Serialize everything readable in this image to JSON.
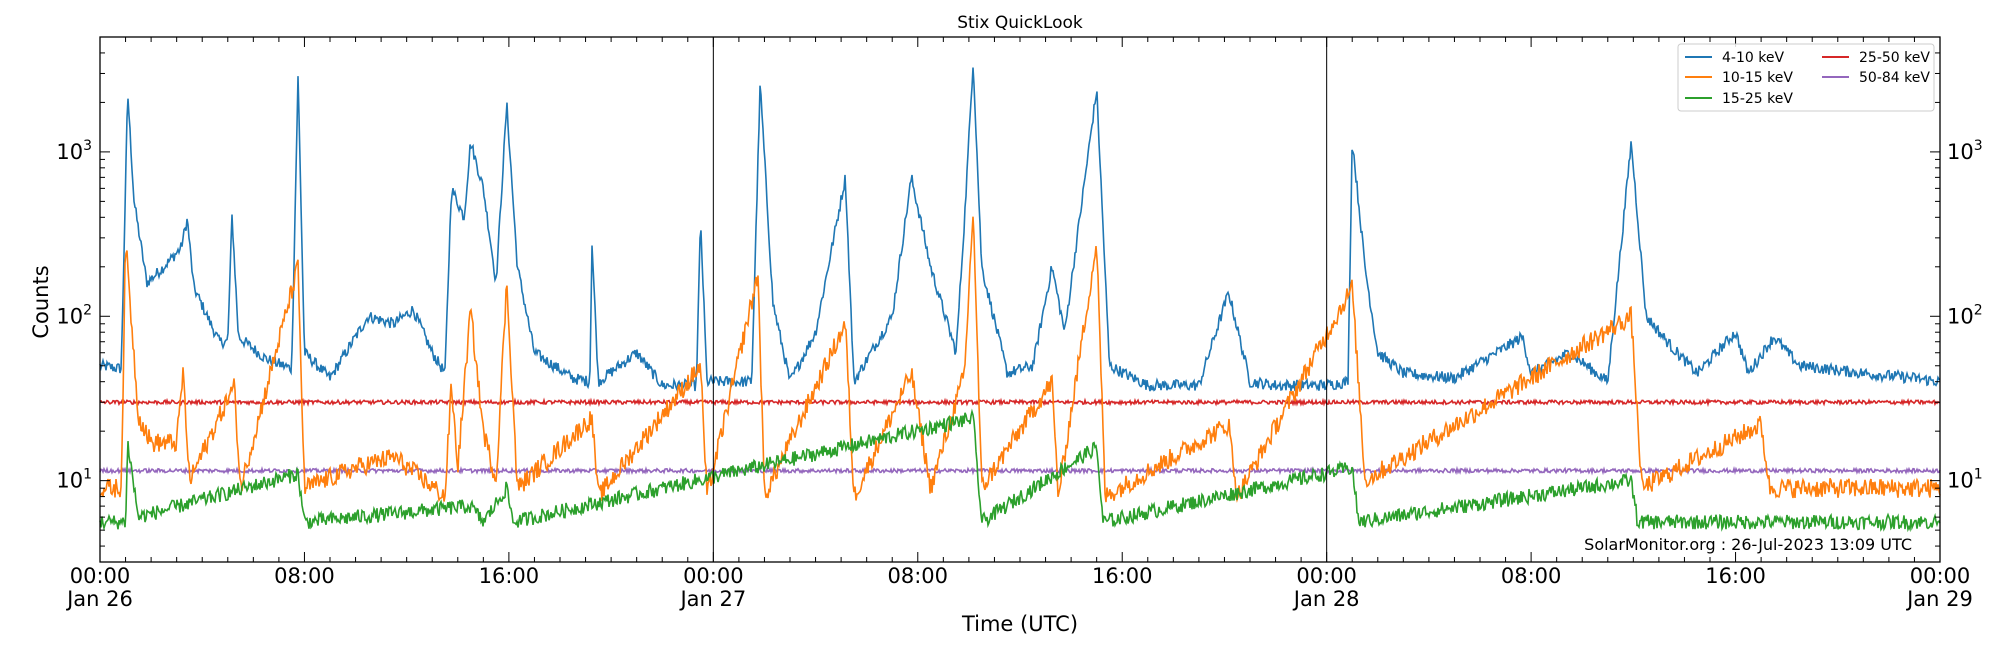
{
  "chart_data": {
    "type": "line",
    "title": "Stix QuickLook",
    "xlabel": "Time (UTC)",
    "ylabel": "Counts",
    "y_scale": "log",
    "ylim": [
      3.2,
      5000
    ],
    "xlim": [
      "2023-01-26 00:00",
      "2023-01-29 00:00"
    ],
    "x_ticks": [
      {
        "time": "2023-01-26 00:00",
        "label1": "00:00",
        "label2": "Jan 26"
      },
      {
        "time": "2023-01-26 08:00",
        "label1": "08:00",
        "label2": ""
      },
      {
        "time": "2023-01-26 16:00",
        "label1": "16:00",
        "label2": ""
      },
      {
        "time": "2023-01-27 00:00",
        "label1": "00:00",
        "label2": "Jan 27"
      },
      {
        "time": "2023-01-27 08:00",
        "label1": "08:00",
        "label2": ""
      },
      {
        "time": "2023-01-27 16:00",
        "label1": "16:00",
        "label2": ""
      },
      {
        "time": "2023-01-28 00:00",
        "label1": "00:00",
        "label2": "Jan 28"
      },
      {
        "time": "2023-01-28 08:00",
        "label1": "08:00",
        "label2": ""
      },
      {
        "time": "2023-01-28 16:00",
        "label1": "16:00",
        "label2": ""
      },
      {
        "time": "2023-01-29 00:00",
        "label1": "00:00",
        "label2": "Jan 29"
      }
    ],
    "y_ticks": [
      {
        "value": 10,
        "mantissa": "10",
        "exponent": "1"
      },
      {
        "value": 100,
        "mantissa": "10",
        "exponent": "2"
      },
      {
        "value": 1000,
        "mantissa": "10",
        "exponent": "3"
      }
    ],
    "day_boundaries": [
      "2023-01-27 00:00",
      "2023-01-28 00:00"
    ],
    "legend_position": "top-right",
    "grid": false,
    "annotation": "SolarMonitor.org : 26-Jul-2023 13:09 UTC",
    "series": [
      {
        "name": "4-10 keV",
        "color": "#1f77b4",
        "points": [
          [
            "2023-01-26 00:00",
            50
          ],
          [
            "2023-01-26 00:50",
            48
          ],
          [
            "2023-01-26 01:05",
            2300
          ],
          [
            "2023-01-26 01:20",
            500
          ],
          [
            "2023-01-26 01:50",
            160
          ],
          [
            "2023-01-26 02:30",
            200
          ],
          [
            "2023-01-26 03:10",
            260
          ],
          [
            "2023-01-26 03:25",
            390
          ],
          [
            "2023-01-26 03:40",
            150
          ],
          [
            "2023-01-26 04:20",
            90
          ],
          [
            "2023-01-26 04:40",
            70
          ],
          [
            "2023-01-26 05:00",
            70
          ],
          [
            "2023-01-26 05:10",
            410
          ],
          [
            "2023-01-26 05:25",
            75
          ],
          [
            "2023-01-26 06:30",
            55
          ],
          [
            "2023-01-26 07:30",
            48
          ],
          [
            "2023-01-26 07:45",
            2900
          ],
          [
            "2023-01-26 08:00",
            60
          ],
          [
            "2023-01-26 09:00",
            42
          ],
          [
            "2023-01-26 10:30",
            100
          ],
          [
            "2023-01-26 11:30",
            90
          ],
          [
            "2023-01-26 12:15",
            110
          ],
          [
            "2023-01-26 13:00",
            60
          ],
          [
            "2023-01-26 13:30",
            45
          ],
          [
            "2023-01-26 13:45",
            600
          ],
          [
            "2023-01-26 14:15",
            400
          ],
          [
            "2023-01-26 14:30",
            1150
          ],
          [
            "2023-01-26 15:00",
            600
          ],
          [
            "2023-01-26 15:30",
            160
          ],
          [
            "2023-01-26 15:55",
            1950
          ],
          [
            "2023-01-26 16:20",
            200
          ],
          [
            "2023-01-26 17:00",
            60
          ],
          [
            "2023-01-26 18:30",
            42
          ],
          [
            "2023-01-26 19:10",
            40
          ],
          [
            "2023-01-26 19:15",
            280
          ],
          [
            "2023-01-26 19:30",
            40
          ],
          [
            "2023-01-26 21:00",
            60
          ],
          [
            "2023-01-26 22:00",
            38
          ],
          [
            "2023-01-26 23:20",
            38
          ],
          [
            "2023-01-26 23:30",
            380
          ],
          [
            "2023-01-26 23:45",
            40
          ],
          [
            "2023-01-27 01:30",
            40
          ],
          [
            "2023-01-27 01:50",
            2600
          ],
          [
            "2023-01-27 02:20",
            120
          ],
          [
            "2023-01-27 03:00",
            40
          ],
          [
            "2023-01-27 04:00",
            80
          ],
          [
            "2023-01-27 05:10",
            700
          ],
          [
            "2023-01-27 05:30",
            40
          ],
          [
            "2023-01-27 07:00",
            100
          ],
          [
            "2023-01-27 07:45",
            700
          ],
          [
            "2023-01-27 08:30",
            200
          ],
          [
            "2023-01-27 09:30",
            60
          ],
          [
            "2023-01-27 09:50",
            400
          ],
          [
            "2023-01-27 10:10",
            3600
          ],
          [
            "2023-01-27 10:30",
            200
          ],
          [
            "2023-01-27 11:30",
            45
          ],
          [
            "2023-01-27 12:30",
            50
          ],
          [
            "2023-01-27 13:15",
            200
          ],
          [
            "2023-01-27 13:45",
            80
          ],
          [
            "2023-01-27 15:00",
            2400
          ],
          [
            "2023-01-27 15:30",
            50
          ],
          [
            "2023-01-27 17:00",
            38
          ],
          [
            "2023-01-27 19:00",
            38
          ],
          [
            "2023-01-27 20:10",
            140
          ],
          [
            "2023-01-27 21:00",
            40
          ],
          [
            "2023-01-27 22:00",
            38
          ],
          [
            "2023-01-27 23:59",
            38
          ],
          [
            "2023-01-28 00:50",
            40
          ],
          [
            "2023-01-28 01:00",
            1200
          ],
          [
            "2023-01-28 01:30",
            200
          ],
          [
            "2023-01-28 02:00",
            60
          ],
          [
            "2023-01-28 03:00",
            45
          ],
          [
            "2023-01-28 05:00",
            42
          ],
          [
            "2023-01-28 07:40",
            75
          ],
          [
            "2023-01-28 08:00",
            45
          ],
          [
            "2023-01-28 09:30",
            60
          ],
          [
            "2023-01-28 11:00",
            40
          ],
          [
            "2023-01-28 11:55",
            1150
          ],
          [
            "2023-01-28 12:30",
            100
          ],
          [
            "2023-01-28 13:30",
            65
          ],
          [
            "2023-01-28 14:30",
            45
          ],
          [
            "2023-01-28 16:00",
            80
          ],
          [
            "2023-01-28 16:30",
            45
          ],
          [
            "2023-01-28 17:30",
            75
          ],
          [
            "2023-01-28 18:30",
            50
          ],
          [
            "2023-01-28 21:00",
            45
          ],
          [
            "2023-01-28 23:00",
            42
          ],
          [
            "2023-01-29 00:00",
            40
          ]
        ]
      },
      {
        "name": "10-15 keV",
        "color": "#ff7f0e",
        "points": [
          [
            "2023-01-26 00:00",
            9
          ],
          [
            "2023-01-26 00:50",
            9
          ],
          [
            "2023-01-26 01:00",
            290
          ],
          [
            "2023-01-26 01:30",
            25
          ],
          [
            "2023-01-26 02:00",
            17
          ],
          [
            "2023-01-26 03:00",
            17
          ],
          [
            "2023-01-26 03:15",
            46
          ],
          [
            "2023-01-26 03:30",
            10
          ],
          [
            "2023-01-26 05:15",
            38
          ],
          [
            "2023-01-26 05:30",
            9
          ],
          [
            "2023-01-26 07:45",
            200
          ],
          [
            "2023-01-26 08:00",
            9
          ],
          [
            "2023-01-26 10:00",
            12
          ],
          [
            "2023-01-26 11:30",
            14
          ],
          [
            "2023-01-26 13:30",
            8
          ],
          [
            "2023-01-26 13:45",
            38
          ],
          [
            "2023-01-26 14:00",
            12
          ],
          [
            "2023-01-26 14:30",
            110
          ],
          [
            "2023-01-26 15:00",
            20
          ],
          [
            "2023-01-26 15:30",
            10
          ],
          [
            "2023-01-26 15:55",
            160
          ],
          [
            "2023-01-26 16:20",
            9
          ],
          [
            "2023-01-26 19:15",
            24
          ],
          [
            "2023-01-26 19:30",
            8
          ],
          [
            "2023-01-26 23:30",
            50
          ],
          [
            "2023-01-26 23:45",
            8
          ],
          [
            "2023-01-27 01:45",
            180
          ],
          [
            "2023-01-27 02:00",
            8
          ],
          [
            "2023-01-27 05:10",
            90
          ],
          [
            "2023-01-27 05:30",
            8
          ],
          [
            "2023-01-27 07:45",
            45
          ],
          [
            "2023-01-27 08:30",
            9
          ],
          [
            "2023-01-27 09:50",
            45
          ],
          [
            "2023-01-27 10:10",
            450
          ],
          [
            "2023-01-27 10:30",
            9
          ],
          [
            "2023-01-27 13:15",
            40
          ],
          [
            "2023-01-27 13:30",
            8
          ],
          [
            "2023-01-27 15:00",
            280
          ],
          [
            "2023-01-27 15:20",
            8
          ],
          [
            "2023-01-27 20:10",
            22
          ],
          [
            "2023-01-27 20:30",
            8
          ],
          [
            "2023-01-28 01:00",
            150
          ],
          [
            "2023-01-28 01:30",
            10
          ],
          [
            "2023-01-28 11:55",
            100
          ],
          [
            "2023-01-28 12:20",
            9
          ],
          [
            "2023-01-28 17:00",
            22
          ],
          [
            "2023-01-28 17:20",
            9
          ],
          [
            "2023-01-29 00:00",
            9
          ]
        ]
      },
      {
        "name": "15-25 keV",
        "color": "#2ca02c",
        "points": [
          [
            "2023-01-26 00:00",
            5.6
          ],
          [
            "2023-01-26 01:00",
            5.6
          ],
          [
            "2023-01-26 01:05",
            17
          ],
          [
            "2023-01-26 01:30",
            6
          ],
          [
            "2023-01-26 07:45",
            11
          ],
          [
            "2023-01-26 08:00",
            5.6
          ],
          [
            "2023-01-26 14:30",
            7
          ],
          [
            "2023-01-26 15:00",
            5.6
          ],
          [
            "2023-01-26 15:55",
            9
          ],
          [
            "2023-01-26 16:10",
            5.6
          ],
          [
            "2023-01-27 10:10",
            24
          ],
          [
            "2023-01-27 10:30",
            5.6
          ],
          [
            "2023-01-27 15:00",
            16
          ],
          [
            "2023-01-27 15:15",
            5.6
          ],
          [
            "2023-01-28 01:00",
            12
          ],
          [
            "2023-01-28 01:15",
            5.6
          ],
          [
            "2023-01-28 11:55",
            10
          ],
          [
            "2023-01-28 12:10",
            5.6
          ],
          [
            "2023-01-29 00:00",
            5.6
          ]
        ]
      },
      {
        "name": "25-50 keV",
        "color": "#d62728",
        "points": [
          [
            "2023-01-26 00:00",
            30
          ],
          [
            "2023-01-29 00:00",
            30
          ]
        ]
      },
      {
        "name": "50-84 keV",
        "color": "#9467bd",
        "points": [
          [
            "2023-01-26 00:00",
            11.5
          ],
          [
            "2023-01-29 00:00",
            11.5
          ]
        ]
      }
    ]
  }
}
